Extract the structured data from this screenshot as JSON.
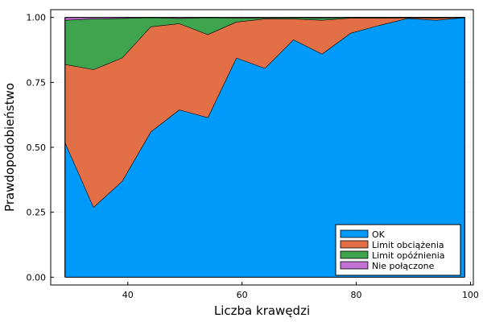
{
  "chart_data": {
    "type": "area",
    "stacked": true,
    "x": [
      29,
      34,
      39,
      44,
      49,
      54,
      59,
      64,
      69,
      74,
      79,
      84,
      89,
      94,
      99
    ],
    "series": [
      {
        "name": "OK",
        "color": "#009AFA",
        "values": [
          0.52,
          0.27,
          0.37,
          0.56,
          0.645,
          0.615,
          0.845,
          0.805,
          0.915,
          0.86,
          0.94,
          0.97,
          0.997,
          0.99,
          1.0
        ]
      },
      {
        "name": "Limit obciążenia",
        "color": "#E26F46",
        "values": [
          0.3,
          0.53,
          0.475,
          0.405,
          0.332,
          0.32,
          0.138,
          0.19,
          0.08,
          0.13,
          0.058,
          0.028,
          0.002,
          0.008,
          0.0
        ]
      },
      {
        "name": "Limit opóźnienia",
        "color": "#3EA44E",
        "values": [
          0.17,
          0.195,
          0.152,
          0.035,
          0.02,
          0.065,
          0.015,
          0.003,
          0.005,
          0.008,
          0.002,
          0.002,
          0.001,
          0.001,
          0.0
        ]
      },
      {
        "name": "Nie połączone",
        "color": "#C271D2",
        "values": [
          0.01,
          0.005,
          0.003,
          0.0,
          0.003,
          0.0,
          0.002,
          0.002,
          0.0,
          0.002,
          0.0,
          0.0,
          0.0,
          0.001,
          0.0
        ]
      }
    ],
    "xlabel": "Liczba krawędzi",
    "ylabel": "Prawdopodobieństwo",
    "xlim": [
      26.5,
      100.5
    ],
    "ylim": [
      -0.03,
      1.03
    ],
    "xticks": [
      40,
      60,
      80,
      100
    ],
    "xtick_labels": [
      "40",
      "60",
      "80",
      "100"
    ],
    "yticks": [
      0,
      0.25,
      0.5,
      0.75,
      1.0
    ],
    "ytick_labels": [
      "0.00",
      "0.25",
      "0.50",
      "0.75",
      "1.00"
    ],
    "grid": true,
    "legend_position": "bottom-right"
  }
}
